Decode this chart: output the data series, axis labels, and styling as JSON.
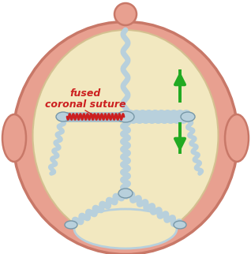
{
  "bg_color": "#ffffff",
  "skin_color": "#e8a090",
  "skin_edge": "#c87868",
  "bone_color": "#f2e8c0",
  "bone_edge": "#d4c090",
  "suture_fill": "#b8d0dc",
  "suture_edge": "#7898a8",
  "fused_color": "#cc2020",
  "label_color": "#cc2020",
  "arrow_color": "#22aa22",
  "figsize": [
    3.18,
    3.22
  ],
  "dpi": 100
}
